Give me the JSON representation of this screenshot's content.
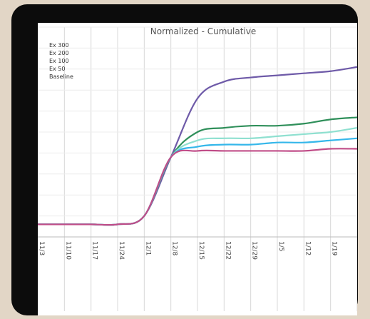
{
  "chart_data": {
    "type": "line",
    "title": "Normalized - Cumulative",
    "xlabel": "",
    "ylabel": "",
    "x": [
      "11/3",
      "11/10",
      "11/17",
      "11/24",
      "12/1",
      "12/8",
      "12/15",
      "12/22",
      "12/29",
      "1/5",
      "1/12",
      "1/19",
      "1/26"
    ],
    "grid": true,
    "legend_placement": "top-left",
    "series": [
      {
        "name": "Ex 300",
        "color": "#6e5aa8",
        "values": [
          0.06,
          0.06,
          0.06,
          0.06,
          0.1,
          0.38,
          0.66,
          0.74,
          0.76,
          0.77,
          0.78,
          0.79,
          0.81
        ]
      },
      {
        "name": "Ex 200",
        "color": "#2f8f5a",
        "values": [
          0.06,
          0.06,
          0.06,
          0.06,
          0.1,
          0.38,
          0.5,
          0.52,
          0.53,
          0.53,
          0.54,
          0.56,
          0.57
        ]
      },
      {
        "name": "Ex 100",
        "color": "#8fe0d0",
        "values": [
          0.06,
          0.06,
          0.06,
          0.06,
          0.1,
          0.38,
          0.46,
          0.47,
          0.47,
          0.48,
          0.49,
          0.5,
          0.52
        ]
      },
      {
        "name": "Ex 50",
        "color": "#35b7ea",
        "values": [
          0.06,
          0.06,
          0.06,
          0.06,
          0.1,
          0.38,
          0.43,
          0.44,
          0.44,
          0.45,
          0.45,
          0.46,
          0.47
        ]
      },
      {
        "name": "Baseline",
        "color": "#c04d88",
        "values": [
          0.06,
          0.06,
          0.06,
          0.06,
          0.1,
          0.38,
          0.41,
          0.41,
          0.41,
          0.41,
          0.41,
          0.42,
          0.42
        ]
      }
    ]
  }
}
